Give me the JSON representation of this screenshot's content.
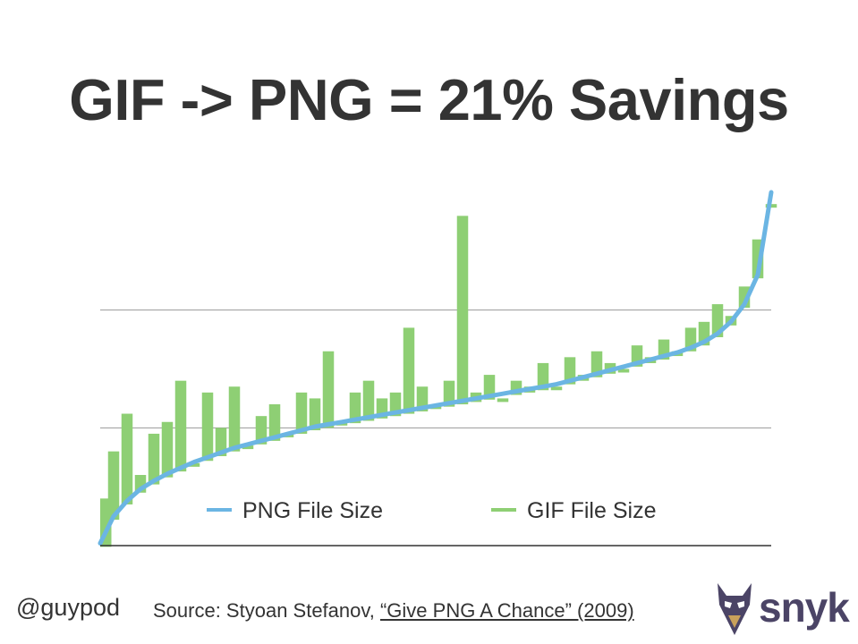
{
  "slide": {
    "title": "GIF -> PNG = 21% Savings"
  },
  "footer": {
    "handle": "@guypod",
    "source_prefix": "Source: Styoan Stefanov, ",
    "source_link": "“Give PNG A Chance” (2009)",
    "logo_text": "snyk"
  },
  "colors": {
    "png": "#6bb5e3",
    "gif": "#8ecf74",
    "gridline": "#999999",
    "axis": "#333333",
    "text": "#333333"
  },
  "chart_data": {
    "type": "line",
    "title": "",
    "xlabel": "",
    "ylabel": "",
    "x": [
      0,
      4,
      8,
      12,
      16,
      20,
      24,
      28,
      32,
      36,
      40,
      44,
      48,
      52,
      56,
      60,
      64,
      68,
      72,
      76,
      80,
      84,
      88,
      92,
      96,
      100,
      104,
      108,
      112,
      116,
      120,
      124,
      128,
      132,
      136,
      140,
      144,
      148,
      152,
      156,
      160,
      164,
      168,
      172,
      176,
      180,
      184,
      188,
      192,
      196,
      200
    ],
    "ylim": [
      0,
      3
    ],
    "grid": true,
    "legend": "bottom-center",
    "series": [
      {
        "name": "PNG File Size",
        "values": [
          0.02,
          0.25,
          0.38,
          0.48,
          0.55,
          0.61,
          0.66,
          0.71,
          0.75,
          0.79,
          0.83,
          0.86,
          0.89,
          0.92,
          0.95,
          0.98,
          1.01,
          1.03,
          1.05,
          1.07,
          1.09,
          1.11,
          1.13,
          1.15,
          1.17,
          1.19,
          1.21,
          1.23,
          1.25,
          1.27,
          1.29,
          1.31,
          1.33,
          1.35,
          1.37,
          1.4,
          1.43,
          1.46,
          1.49,
          1.52,
          1.55,
          1.58,
          1.61,
          1.64,
          1.68,
          1.73,
          1.8,
          1.9,
          2.05,
          2.3,
          3.0
        ]
      },
      {
        "name": "GIF File Size",
        "values": [
          0.4,
          0.8,
          1.12,
          0.6,
          0.95,
          1.05,
          1.4,
          0.7,
          1.3,
          1.0,
          1.35,
          0.85,
          1.1,
          1.2,
          0.95,
          1.3,
          1.25,
          1.65,
          1.05,
          1.3,
          1.4,
          1.25,
          1.3,
          1.85,
          1.35,
          1.2,
          1.4,
          2.8,
          1.3,
          1.45,
          1.25,
          1.4,
          1.35,
          1.55,
          1.35,
          1.6,
          1.45,
          1.65,
          1.55,
          1.5,
          1.7,
          1.6,
          1.75,
          1.65,
          1.85,
          1.9,
          2.05,
          1.95,
          2.2,
          2.6,
          2.9
        ]
      }
    ]
  }
}
